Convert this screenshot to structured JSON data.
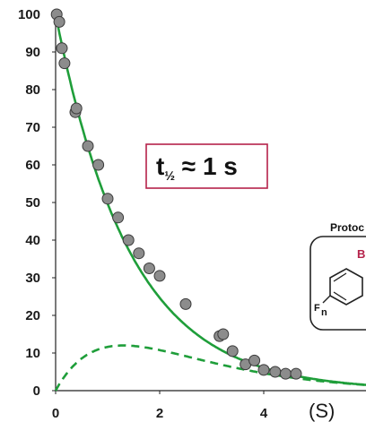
{
  "chart_data": {
    "type": "scatter",
    "title": "",
    "xlabel": "(S)",
    "ylabel": "",
    "xlim": [
      0,
      6
    ],
    "ylim": [
      0,
      100
    ],
    "x_ticks": [
      "0",
      "2",
      "4"
    ],
    "y_ticks": [
      "0",
      "10",
      "20",
      "30",
      "40",
      "50",
      "60",
      "70",
      "80",
      "90",
      "100"
    ],
    "points": [
      {
        "x": 0.02,
        "y": 100
      },
      {
        "x": 0.07,
        "y": 98
      },
      {
        "x": 0.12,
        "y": 91
      },
      {
        "x": 0.17,
        "y": 87
      },
      {
        "x": 0.38,
        "y": 74
      },
      {
        "x": 0.4,
        "y": 75
      },
      {
        "x": 0.62,
        "y": 65
      },
      {
        "x": 0.82,
        "y": 60
      },
      {
        "x": 1.0,
        "y": 51
      },
      {
        "x": 1.2,
        "y": 46
      },
      {
        "x": 1.4,
        "y": 40
      },
      {
        "x": 1.6,
        "y": 36.5
      },
      {
        "x": 1.8,
        "y": 32.5
      },
      {
        "x": 2.0,
        "y": 30.5
      },
      {
        "x": 2.5,
        "y": 23
      },
      {
        "x": 3.15,
        "y": 14.5
      },
      {
        "x": 3.22,
        "y": 15
      },
      {
        "x": 3.4,
        "y": 10.5
      },
      {
        "x": 3.65,
        "y": 7
      },
      {
        "x": 3.82,
        "y": 8
      },
      {
        "x": 4.0,
        "y": 5.5
      },
      {
        "x": 4.22,
        "y": 5
      },
      {
        "x": 4.42,
        "y": 4.5
      },
      {
        "x": 4.62,
        "y": 4.5
      }
    ],
    "fit_curve": {
      "type": "exponential_decay",
      "a": 100,
      "k": 0.7,
      "color": "#1f9e3a",
      "style": "solid"
    },
    "intermediate_curve": {
      "type": "rise_and_fall",
      "peak_x": 1.3,
      "peak_y": 12,
      "color": "#1f9e3a",
      "style": "dashed"
    },
    "point_color": "#8c8c8c",
    "annotation": {
      "text_main": "t",
      "subscript": "½",
      "text_rest": " ≈ 1 s",
      "border_color": "#b5224a"
    }
  },
  "inset": {
    "label": "Protoc",
    "red_label": "B",
    "substituent": "F",
    "subscript": "n"
  }
}
